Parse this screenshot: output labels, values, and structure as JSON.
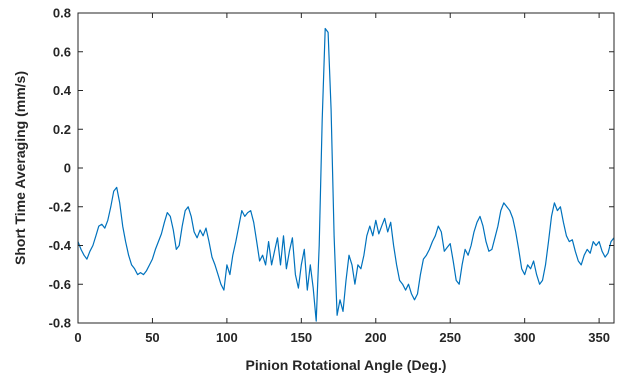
{
  "chart_data": {
    "type": "line",
    "xlabel": "Pinion Rotational Angle (Deg.)",
    "ylabel": "Short Time Averaging (mm/s)",
    "xlim": [
      0,
      360
    ],
    "ylim": [
      -0.8,
      0.8
    ],
    "xticks": [
      "0",
      "50",
      "100",
      "150",
      "200",
      "250",
      "300",
      "350"
    ],
    "yticks": [
      "0.8",
      "0.6",
      "0.4",
      "0.2",
      "0",
      "-0.2",
      "-0.4",
      "-0.6",
      "-0.8"
    ],
    "grid": false,
    "legend": "none",
    "line_color": "#0072BD",
    "series": [
      {
        "points": [
          [
            0,
            -0.38
          ],
          [
            2,
            -0.42
          ],
          [
            4,
            -0.45
          ],
          [
            6,
            -0.47
          ],
          [
            8,
            -0.43
          ],
          [
            10,
            -0.4
          ],
          [
            12,
            -0.35
          ],
          [
            14,
            -0.3
          ],
          [
            16,
            -0.29
          ],
          [
            18,
            -0.31
          ],
          [
            20,
            -0.27
          ],
          [
            22,
            -0.2
          ],
          [
            24,
            -0.12
          ],
          [
            26,
            -0.1
          ],
          [
            28,
            -0.18
          ],
          [
            30,
            -0.3
          ],
          [
            32,
            -0.38
          ],
          [
            34,
            -0.45
          ],
          [
            36,
            -0.5
          ],
          [
            38,
            -0.52
          ],
          [
            40,
            -0.55
          ],
          [
            42,
            -0.54
          ],
          [
            44,
            -0.55
          ],
          [
            46,
            -0.53
          ],
          [
            48,
            -0.5
          ],
          [
            50,
            -0.47
          ],
          [
            52,
            -0.42
          ],
          [
            54,
            -0.38
          ],
          [
            56,
            -0.34
          ],
          [
            58,
            -0.28
          ],
          [
            60,
            -0.23
          ],
          [
            62,
            -0.25
          ],
          [
            64,
            -0.32
          ],
          [
            66,
            -0.42
          ],
          [
            68,
            -0.4
          ],
          [
            70,
            -0.3
          ],
          [
            72,
            -0.22
          ],
          [
            74,
            -0.2
          ],
          [
            76,
            -0.25
          ],
          [
            78,
            -0.33
          ],
          [
            80,
            -0.36
          ],
          [
            82,
            -0.32
          ],
          [
            84,
            -0.35
          ],
          [
            86,
            -0.31
          ],
          [
            88,
            -0.38
          ],
          [
            90,
            -0.46
          ],
          [
            92,
            -0.5
          ],
          [
            94,
            -0.55
          ],
          [
            96,
            -0.6
          ],
          [
            98,
            -0.63
          ],
          [
            100,
            -0.5
          ],
          [
            102,
            -0.55
          ],
          [
            104,
            -0.45
          ],
          [
            106,
            -0.38
          ],
          [
            108,
            -0.3
          ],
          [
            110,
            -0.22
          ],
          [
            112,
            -0.25
          ],
          [
            114,
            -0.23
          ],
          [
            116,
            -0.22
          ],
          [
            118,
            -0.28
          ],
          [
            120,
            -0.38
          ],
          [
            122,
            -0.48
          ],
          [
            124,
            -0.45
          ],
          [
            126,
            -0.5
          ],
          [
            128,
            -0.38
          ],
          [
            130,
            -0.5
          ],
          [
            132,
            -0.43
          ],
          [
            134,
            -0.36
          ],
          [
            136,
            -0.5
          ],
          [
            138,
            -0.35
          ],
          [
            140,
            -0.52
          ],
          [
            142,
            -0.43
          ],
          [
            144,
            -0.36
          ],
          [
            146,
            -0.55
          ],
          [
            148,
            -0.62
          ],
          [
            150,
            -0.5
          ],
          [
            152,
            -0.42
          ],
          [
            154,
            -0.63
          ],
          [
            156,
            -0.5
          ],
          [
            158,
            -0.62
          ],
          [
            160,
            -0.79
          ],
          [
            162,
            -0.4
          ],
          [
            164,
            0.25
          ],
          [
            166,
            0.72
          ],
          [
            168,
            0.7
          ],
          [
            170,
            0.3
          ],
          [
            172,
            -0.35
          ],
          [
            174,
            -0.76
          ],
          [
            176,
            -0.68
          ],
          [
            178,
            -0.74
          ],
          [
            180,
            -0.58
          ],
          [
            182,
            -0.45
          ],
          [
            184,
            -0.5
          ],
          [
            186,
            -0.6
          ],
          [
            188,
            -0.5
          ],
          [
            190,
            -0.52
          ],
          [
            192,
            -0.45
          ],
          [
            194,
            -0.35
          ],
          [
            196,
            -0.3
          ],
          [
            198,
            -0.35
          ],
          [
            200,
            -0.27
          ],
          [
            202,
            -0.34
          ],
          [
            204,
            -0.3
          ],
          [
            206,
            -0.26
          ],
          [
            208,
            -0.33
          ],
          [
            210,
            -0.28
          ],
          [
            212,
            -0.4
          ],
          [
            214,
            -0.5
          ],
          [
            216,
            -0.58
          ],
          [
            218,
            -0.6
          ],
          [
            220,
            -0.63
          ],
          [
            222,
            -0.6
          ],
          [
            224,
            -0.65
          ],
          [
            226,
            -0.68
          ],
          [
            228,
            -0.65
          ],
          [
            230,
            -0.55
          ],
          [
            232,
            -0.47
          ],
          [
            234,
            -0.45
          ],
          [
            236,
            -0.42
          ],
          [
            238,
            -0.38
          ],
          [
            240,
            -0.35
          ],
          [
            242,
            -0.3
          ],
          [
            244,
            -0.33
          ],
          [
            246,
            -0.43
          ],
          [
            248,
            -0.41
          ],
          [
            250,
            -0.39
          ],
          [
            252,
            -0.48
          ],
          [
            254,
            -0.58
          ],
          [
            256,
            -0.6
          ],
          [
            258,
            -0.5
          ],
          [
            260,
            -0.42
          ],
          [
            262,
            -0.45
          ],
          [
            264,
            -0.4
          ],
          [
            266,
            -0.33
          ],
          [
            268,
            -0.28
          ],
          [
            270,
            -0.25
          ],
          [
            272,
            -0.3
          ],
          [
            274,
            -0.38
          ],
          [
            276,
            -0.43
          ],
          [
            278,
            -0.42
          ],
          [
            280,
            -0.36
          ],
          [
            282,
            -0.3
          ],
          [
            284,
            -0.22
          ],
          [
            286,
            -0.18
          ],
          [
            288,
            -0.2
          ],
          [
            290,
            -0.22
          ],
          [
            292,
            -0.26
          ],
          [
            294,
            -0.33
          ],
          [
            296,
            -0.42
          ],
          [
            298,
            -0.52
          ],
          [
            300,
            -0.55
          ],
          [
            302,
            -0.5
          ],
          [
            304,
            -0.52
          ],
          [
            306,
            -0.48
          ],
          [
            308,
            -0.55
          ],
          [
            310,
            -0.6
          ],
          [
            312,
            -0.58
          ],
          [
            314,
            -0.5
          ],
          [
            316,
            -0.38
          ],
          [
            318,
            -0.25
          ],
          [
            320,
            -0.18
          ],
          [
            322,
            -0.22
          ],
          [
            324,
            -0.2
          ],
          [
            326,
            -0.28
          ],
          [
            328,
            -0.35
          ],
          [
            330,
            -0.38
          ],
          [
            332,
            -0.37
          ],
          [
            334,
            -0.43
          ],
          [
            336,
            -0.48
          ],
          [
            338,
            -0.5
          ],
          [
            340,
            -0.45
          ],
          [
            342,
            -0.42
          ],
          [
            344,
            -0.44
          ],
          [
            346,
            -0.38
          ],
          [
            348,
            -0.4
          ],
          [
            350,
            -0.38
          ],
          [
            352,
            -0.43
          ],
          [
            354,
            -0.46
          ],
          [
            356,
            -0.44
          ],
          [
            358,
            -0.38
          ],
          [
            360,
            -0.36
          ]
        ]
      }
    ]
  }
}
